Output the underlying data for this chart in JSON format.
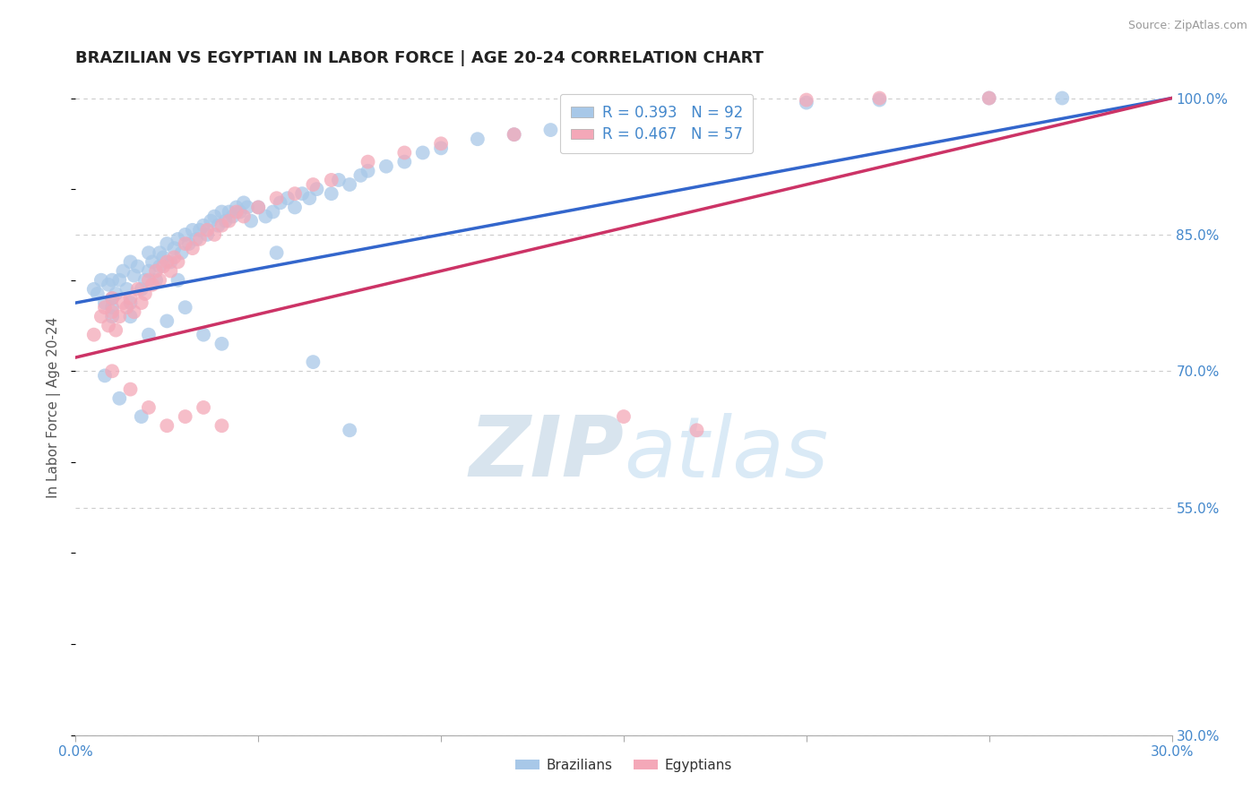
{
  "title": "BRAZILIAN VS EGYPTIAN IN LABOR FORCE | AGE 20-24 CORRELATION CHART",
  "source": "Source: ZipAtlas.com",
  "ylabel": "In Labor Force | Age 20-24",
  "xlim": [
    0.0,
    0.3
  ],
  "ylim": [
    0.3,
    1.02
  ],
  "xtick_positions": [
    0.0,
    0.05,
    0.1,
    0.15,
    0.2,
    0.25,
    0.3
  ],
  "xticklabels": [
    "0.0%",
    "",
    "",
    "",
    "",
    "",
    "30.0%"
  ],
  "ytick_pos": [
    1.0,
    0.85,
    0.7,
    0.55,
    0.3
  ],
  "ytick_labels": [
    "100.0%",
    "85.0%",
    "70.0%",
    "55.0%",
    "30.0%"
  ],
  "blue_color": "#a8c8e8",
  "pink_color": "#f4a8b8",
  "blue_line_color": "#3366cc",
  "pink_line_color": "#cc3366",
  "legend_line1": "R = 0.393   N = 92",
  "legend_line2": "R = 0.467   N = 57",
  "legend_label_blue": "Brazilians",
  "legend_label_pink": "Egyptians",
  "watermark_zip": "ZIP",
  "watermark_atlas": "atlas",
  "background_color": "#ffffff",
  "grid_color": "#cccccc",
  "title_color": "#222222",
  "right_axis_color": "#4488cc",
  "blue_x": [
    0.005,
    0.006,
    0.007,
    0.008,
    0.009,
    0.01,
    0.01,
    0.01,
    0.01,
    0.011,
    0.012,
    0.013,
    0.014,
    0.015,
    0.015,
    0.016,
    0.017,
    0.018,
    0.019,
    0.02,
    0.02,
    0.021,
    0.022,
    0.023,
    0.023,
    0.024,
    0.025,
    0.026,
    0.027,
    0.028,
    0.028,
    0.029,
    0.03,
    0.031,
    0.032,
    0.033,
    0.034,
    0.035,
    0.036,
    0.037,
    0.038,
    0.039,
    0.04,
    0.041,
    0.042,
    0.043,
    0.044,
    0.045,
    0.046,
    0.047,
    0.048,
    0.05,
    0.052,
    0.054,
    0.056,
    0.058,
    0.06,
    0.062,
    0.064,
    0.066,
    0.07,
    0.072,
    0.075,
    0.078,
    0.08,
    0.085,
    0.09,
    0.095,
    0.1,
    0.11,
    0.12,
    0.13,
    0.14,
    0.155,
    0.165,
    0.18,
    0.2,
    0.22,
    0.25,
    0.27,
    0.015,
    0.02,
    0.025,
    0.03,
    0.035,
    0.04,
    0.008,
    0.012,
    0.018,
    0.055,
    0.065,
    0.075
  ],
  "blue_y": [
    0.79,
    0.785,
    0.8,
    0.775,
    0.795,
    0.78,
    0.76,
    0.8,
    0.77,
    0.785,
    0.8,
    0.81,
    0.79,
    0.82,
    0.775,
    0.805,
    0.815,
    0.79,
    0.8,
    0.83,
    0.81,
    0.82,
    0.8,
    0.83,
    0.815,
    0.825,
    0.84,
    0.82,
    0.835,
    0.845,
    0.8,
    0.83,
    0.85,
    0.84,
    0.855,
    0.845,
    0.855,
    0.86,
    0.85,
    0.865,
    0.87,
    0.86,
    0.875,
    0.865,
    0.875,
    0.87,
    0.88,
    0.875,
    0.885,
    0.88,
    0.865,
    0.88,
    0.87,
    0.875,
    0.885,
    0.89,
    0.88,
    0.895,
    0.89,
    0.9,
    0.895,
    0.91,
    0.905,
    0.915,
    0.92,
    0.925,
    0.93,
    0.94,
    0.945,
    0.955,
    0.96,
    0.965,
    0.97,
    0.98,
    0.985,
    0.99,
    0.995,
    0.998,
    1.0,
    1.0,
    0.76,
    0.74,
    0.755,
    0.77,
    0.74,
    0.73,
    0.695,
    0.67,
    0.65,
    0.83,
    0.71,
    0.635
  ],
  "pink_x": [
    0.005,
    0.007,
    0.008,
    0.009,
    0.01,
    0.01,
    0.011,
    0.012,
    0.013,
    0.014,
    0.015,
    0.016,
    0.017,
    0.018,
    0.019,
    0.02,
    0.021,
    0.022,
    0.023,
    0.024,
    0.025,
    0.026,
    0.027,
    0.028,
    0.03,
    0.032,
    0.034,
    0.036,
    0.038,
    0.04,
    0.042,
    0.044,
    0.046,
    0.05,
    0.055,
    0.06,
    0.065,
    0.07,
    0.08,
    0.09,
    0.1,
    0.12,
    0.14,
    0.16,
    0.18,
    0.2,
    0.22,
    0.25,
    0.01,
    0.015,
    0.02,
    0.025,
    0.03,
    0.035,
    0.04,
    0.15,
    0.17
  ],
  "pink_y": [
    0.74,
    0.76,
    0.77,
    0.75,
    0.765,
    0.78,
    0.745,
    0.76,
    0.775,
    0.77,
    0.78,
    0.765,
    0.79,
    0.775,
    0.785,
    0.8,
    0.795,
    0.81,
    0.8,
    0.815,
    0.82,
    0.81,
    0.825,
    0.82,
    0.84,
    0.835,
    0.845,
    0.855,
    0.85,
    0.86,
    0.865,
    0.875,
    0.87,
    0.88,
    0.89,
    0.895,
    0.905,
    0.91,
    0.93,
    0.94,
    0.95,
    0.96,
    0.97,
    0.98,
    0.99,
    0.998,
    1.0,
    1.0,
    0.7,
    0.68,
    0.66,
    0.64,
    0.65,
    0.66,
    0.64,
    0.65,
    0.635
  ],
  "blue_line_x0": 0.0,
  "blue_line_y0": 0.775,
  "blue_line_x1": 0.3,
  "blue_line_y1": 1.0,
  "pink_line_x0": 0.0,
  "pink_line_y0": 0.715,
  "pink_line_x1": 0.3,
  "pink_line_y1": 1.0
}
